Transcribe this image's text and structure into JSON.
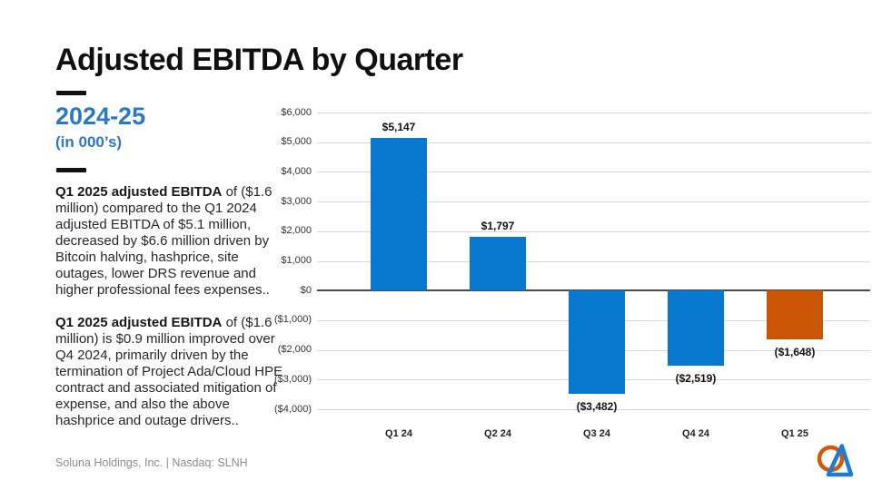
{
  "header": {
    "title": "Adjusted EBITDA by Quarter"
  },
  "sidebar": {
    "period": "2024-25",
    "units": "(in 000’s)",
    "paragraphs": [
      {
        "lead": "Q1 2025 adjusted EBITDA",
        "body": " of ($1.6 million) compared to the Q1 2024 adjusted EBITDA of $5.1 million, decreased by $6.6 million driven by Bitcoin halving, hashprice, site outages, lower DRS revenue and higher professional fees expenses.."
      },
      {
        "lead": "Q1 2025 adjusted EBITDA",
        "body": " of ($1.6 million) is $0.9 million improved over Q4 2024, primarily driven by the termination of Project Ada/Cloud HPE contract and associated mitigation of expense, and also the above hashprice and outage drivers.."
      }
    ]
  },
  "footer": {
    "text": "Soluna Holdings, Inc. | Nasdaq: SLNH"
  },
  "logo": {
    "name": "soluna-logo",
    "circle_color": "#d2590b",
    "triangle_color": "#1b7cd6"
  },
  "colors": {
    "bar_blue": "#0878ce",
    "bar_orange": "#ca5504",
    "accent_blue": "#2b78c6",
    "gridline": "#d8d8d8",
    "zero_line": "#4a4a4a"
  },
  "chart_data": {
    "type": "bar",
    "title": "Adjusted EBITDA by Quarter (in 000's)",
    "categories": [
      "Q1 24",
      "Q2 24",
      "Q3 24",
      "Q4 24",
      "Q1 25"
    ],
    "values": [
      5147,
      1797,
      -3482,
      -2519,
      -1648
    ],
    "value_labels": [
      "$5,147",
      "$1,797",
      "($3,482)",
      "($2,519)",
      "($1,648)"
    ],
    "bar_colors": [
      "#0878ce",
      "#0878ce",
      "#0878ce",
      "#0878ce",
      "#ca5504"
    ],
    "xlabel": "",
    "ylabel": "",
    "ylim": [
      -4000,
      6000
    ],
    "y_tick_values": [
      6000,
      5000,
      4000,
      3000,
      2000,
      1000,
      0,
      -1000,
      -2000,
      -3000,
      -4000
    ],
    "y_tick_labels": [
      "$6,000",
      "$5,000",
      "$4,000",
      "$3,000",
      "$2,000",
      "$1,000",
      "$0",
      "($1,000)",
      "($2,000",
      "($3,000)",
      "($4,000)"
    ],
    "grid": true,
    "legend": false
  }
}
